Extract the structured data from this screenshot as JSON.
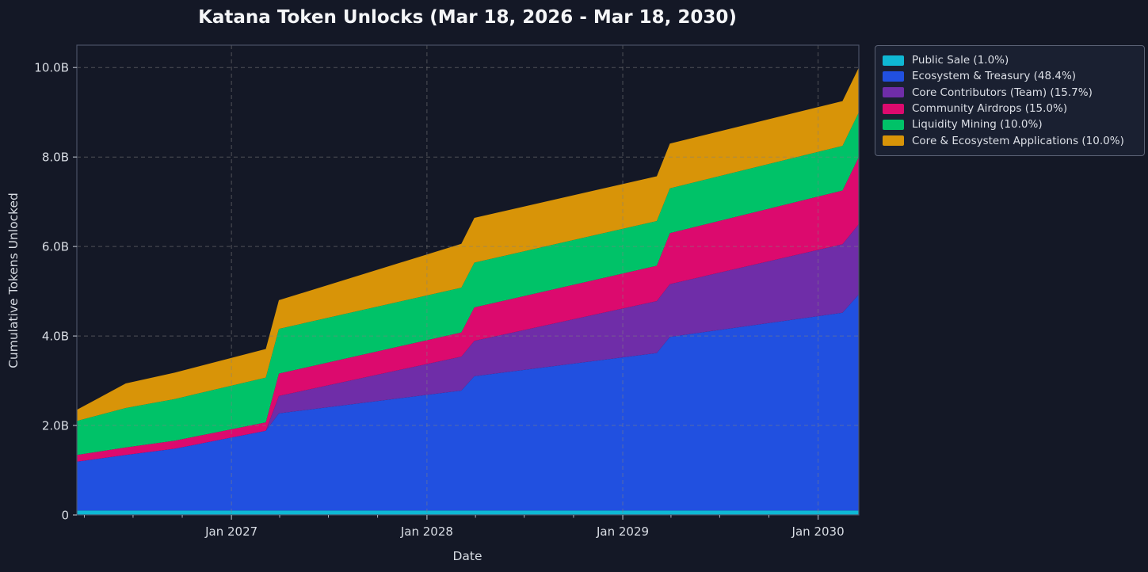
{
  "page": {
    "background_color": "#141826",
    "text_color": "#d9dde4",
    "title_color": "#f4f5f7"
  },
  "chart_data": {
    "type": "area",
    "stacked": true,
    "title": "Katana Token Unlocks (Mar 18, 2026 - Mar 18, 2030)",
    "xlabel": "Date",
    "ylabel": "Cumulative Tokens Unlocked",
    "x_start_date": "2026-03-18",
    "x_end_date": "2030-03-18",
    "x_unit": "months_since_start",
    "x_range_months": [
      0,
      48
    ],
    "ylim": [
      0,
      10.5
    ],
    "y_unit": "billions_of_tokens",
    "total_supply_billions": 10.0,
    "grid": true,
    "grid_style": "dashed",
    "grid_color": "#808080",
    "spine_color": "#4a5266",
    "tick_color": "#aab0bb",
    "legend_position": "outside upper right",
    "y_ticks": [
      {
        "label": "0",
        "value": 0
      },
      {
        "label": "2.0B",
        "value": 2
      },
      {
        "label": "4.0B",
        "value": 4
      },
      {
        "label": "6.0B",
        "value": 6
      },
      {
        "label": "8.0B",
        "value": 8
      },
      {
        "label": "10.0B",
        "value": 10
      }
    ],
    "x_ticks": [
      {
        "label": "Jan 2027",
        "month": 9.49
      },
      {
        "label": "Jan 2028",
        "month": 21.49
      },
      {
        "label": "Jan 2029",
        "month": 33.51
      },
      {
        "label": "Jan 2030",
        "month": 45.5
      }
    ],
    "x_minor_tick_months": [
      0.46,
      3.45,
      6.47,
      12.45,
      15.44,
      18.46,
      24.47,
      27.46,
      30.49,
      36.47,
      39.46,
      42.48
    ],
    "keyframes_months": [
      0,
      3,
      6,
      11.6,
      12.4,
      23.6,
      24.4,
      35.6,
      36.4,
      47.0,
      48
    ],
    "keyframe_notes": "cliff unlocks each Mar 18 anniversary (2027, 2028, 2029, 2030); values are unlocked amounts in billions per allocation",
    "series": [
      {
        "name": "Public Sale",
        "percent": "1.0%",
        "legend_label": "Public Sale (1.0%)",
        "color": "#0fb8d4",
        "values": [
          0.1,
          0.1,
          0.1,
          0.1,
          0.1,
          0.1,
          0.1,
          0.1,
          0.1,
          0.1,
          0.1
        ]
      },
      {
        "name": "Ecosystem & Treasury",
        "percent": "48.4%",
        "legend_label": "Ecosystem & Treasury (48.4%)",
        "color": "#2150e0",
        "values": [
          1.09,
          1.24,
          1.38,
          1.78,
          2.17,
          2.68,
          3.0,
          3.52,
          3.88,
          4.42,
          4.83
        ]
      },
      {
        "name": "Core Contributors (Team)",
        "percent": "15.7%",
        "legend_label": "Core Contributors (Team) (15.7%)",
        "color": "#6f2da8",
        "values": [
          0.0,
          0.0,
          0.0,
          0.0,
          0.39,
          0.76,
          0.79,
          1.16,
          1.18,
          1.53,
          1.57
        ]
      },
      {
        "name": "Community Airdrops",
        "percent": "15.0%",
        "legend_label": "Community Airdrops (15.0%)",
        "color": "#dc0a6e",
        "values": [
          0.15,
          0.17,
          0.18,
          0.19,
          0.5,
          0.54,
          0.75,
          0.79,
          1.14,
          1.2,
          1.5
        ]
      },
      {
        "name": "Liquidity Mining",
        "percent": "10.0%",
        "legend_label": "Liquidity Mining (10.0%)",
        "color": "#00c268",
        "values": [
          0.76,
          0.88,
          0.93,
          1.0,
          1.0,
          1.0,
          1.0,
          1.0,
          1.0,
          1.0,
          1.0
        ]
      },
      {
        "name": "Core & Ecosystem Applications",
        "percent": "10.0%",
        "legend_label": "Core & Ecosystem Applications (10.0%)",
        "color": "#d89408",
        "values": [
          0.25,
          0.55,
          0.59,
          0.64,
          0.64,
          0.98,
          1.0,
          1.0,
          1.0,
          1.0,
          1.0
        ]
      }
    ]
  },
  "legend": {
    "items": [
      "Public Sale (1.0%)",
      "Ecosystem & Treasury (48.4%)",
      "Core Contributors (Team) (15.7%)",
      "Community Airdrops (15.0%)",
      "Liquidity Mining (10.0%)",
      "Core & Ecosystem Applications (10.0%)"
    ]
  }
}
